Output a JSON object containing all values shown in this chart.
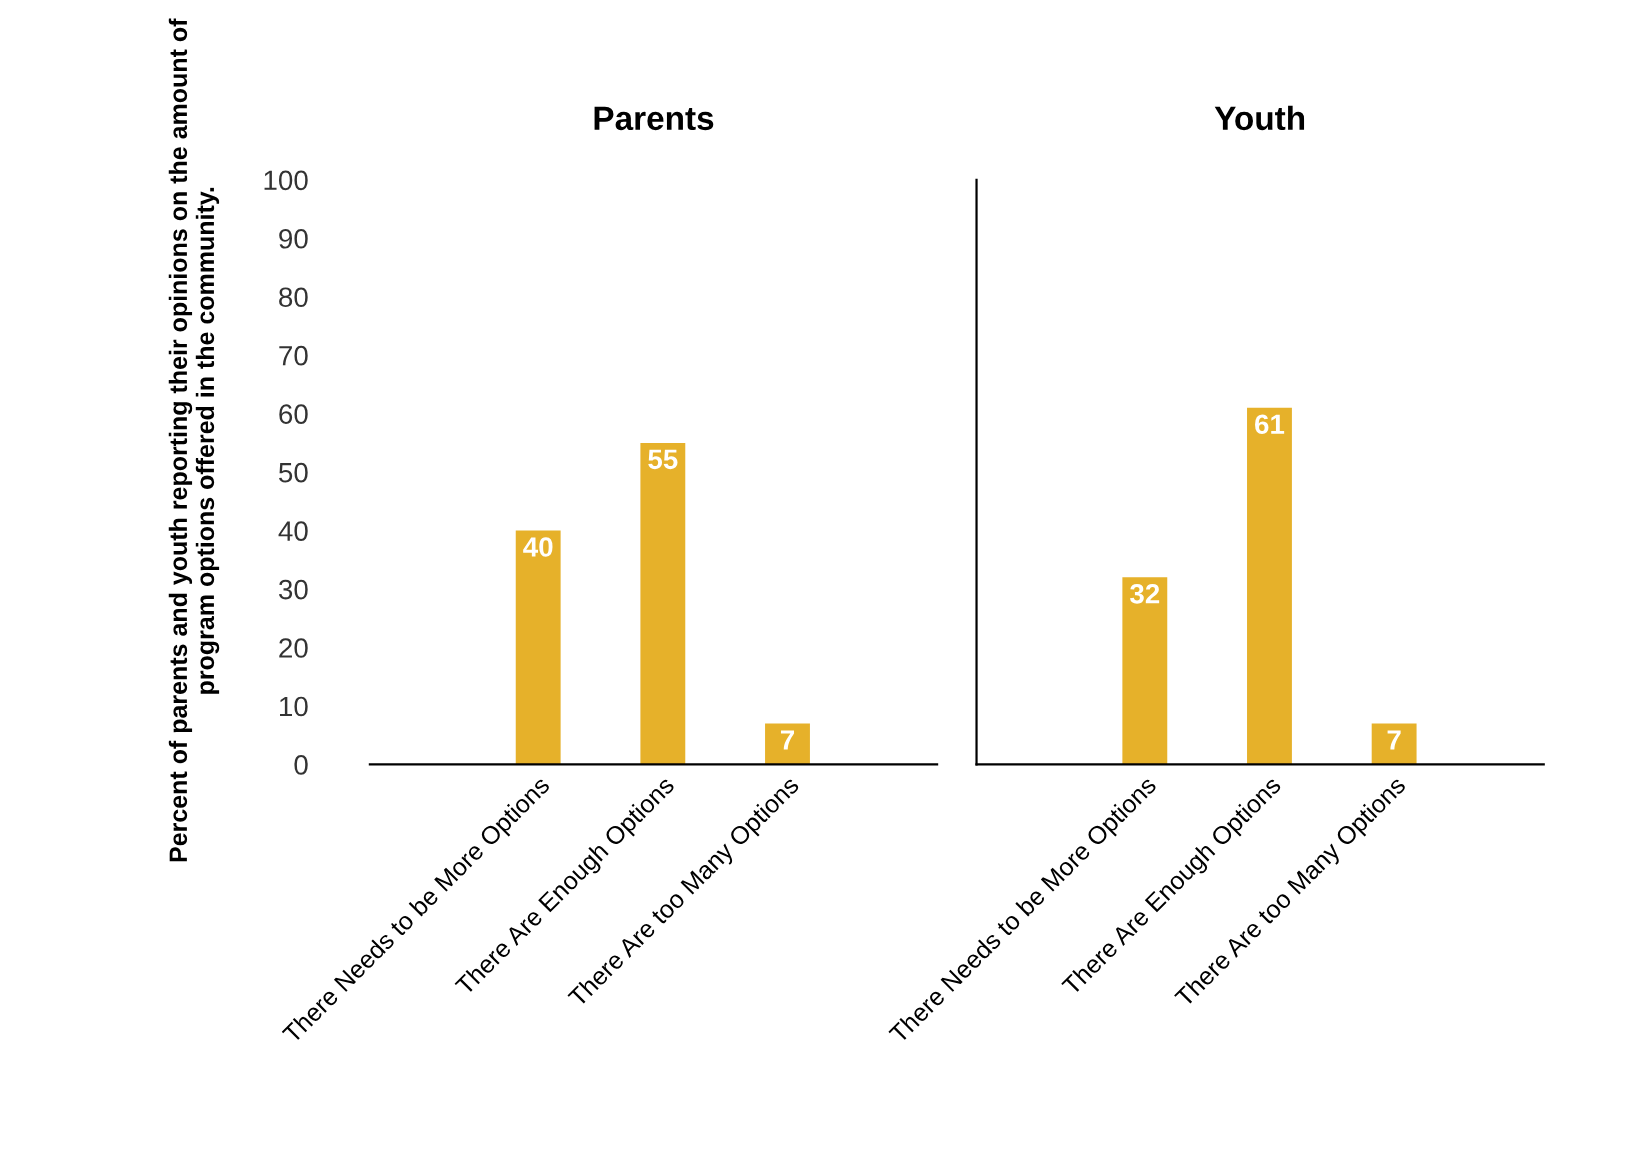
{
  "chart_data": [
    {
      "type": "bar",
      "title": "Parents",
      "ylabel": "Percent of parents and youth reporting their opinions on the amount of program options offered in the community.",
      "categories": [
        "There Needs to be More Options",
        "There Are Enough Options",
        "There Are too Many Options"
      ],
      "values": [
        40,
        55,
        7
      ],
      "color": "#e6b12a",
      "data_labels": true,
      "ylim": [
        0,
        100
      ],
      "yticks": [
        0,
        10,
        20,
        30,
        40,
        50,
        60,
        70,
        80,
        90,
        100
      ],
      "grid": false,
      "legend": false
    },
    {
      "type": "bar",
      "title": "Youth",
      "categories": [
        "There Needs to be More Options",
        "There Are Enough Options",
        "There Are too Many Options"
      ],
      "values": [
        32,
        61,
        7
      ],
      "color": "#e6b12a",
      "data_labels": true,
      "ylim": [
        0,
        100
      ],
      "yticks": [
        0,
        10,
        20,
        30,
        40,
        50,
        60,
        70,
        80,
        90,
        100
      ],
      "tick_labels": "x",
      "grid": false,
      "legend": false
    }
  ]
}
